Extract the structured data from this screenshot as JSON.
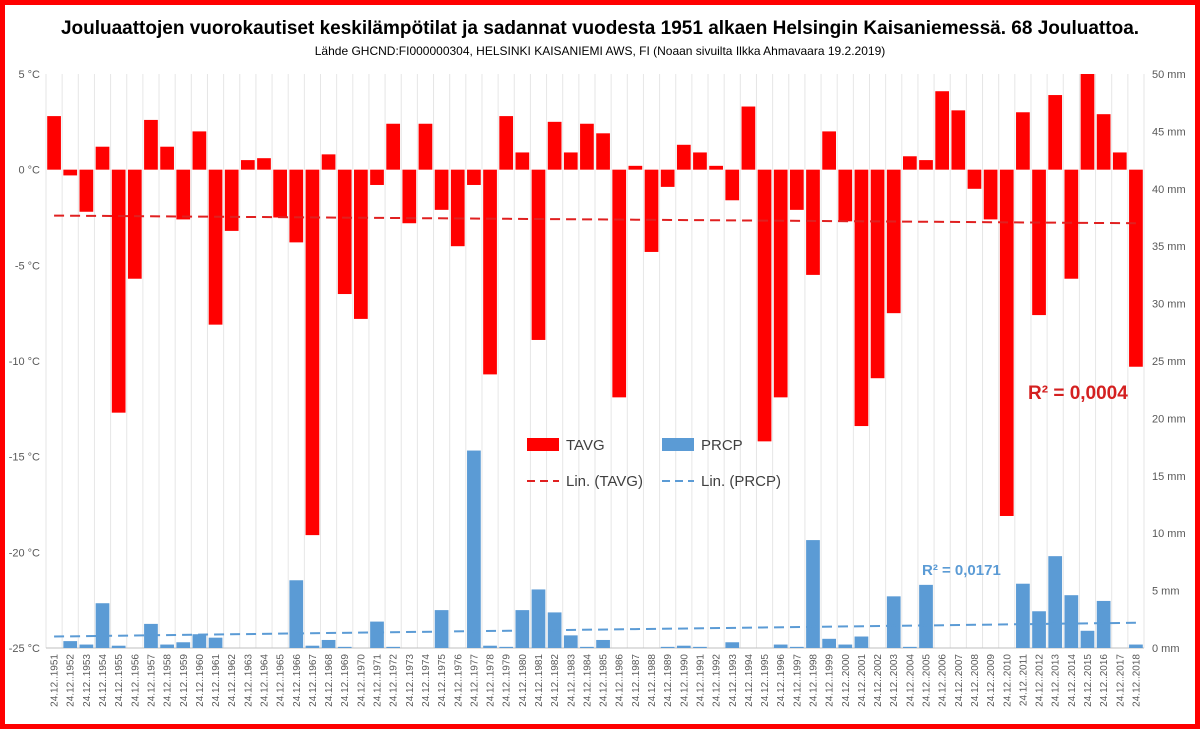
{
  "chart_data": {
    "type": "bar",
    "title": "Jouluaattojen vuorokautiset keskilämpötilat ja sadannat vuodesta 1951 alkaen Helsingin Kaisaniemessä. 68 Jouluattoa.",
    "subtitle": "Lähde GHCND:FI000000304, HELSINKI KAISANIEMI AWS, FI (Noaan sivuilta Ilkka Ahmavaara 19.2.2019)",
    "categories": [
      "24.12..1951",
      "24.12..1952",
      "24.12..1953",
      "24.12..1954",
      "24.12..1955",
      "24.12..1956",
      "24.12..1957",
      "24.12..1958",
      "24.12..1959",
      "24.12..1960",
      "24.12..1961",
      "24.12..1962",
      "24.12..1963",
      "24.12..1964",
      "24.12..1965",
      "24.12..1966",
      "24.12..1967",
      "24.12..1968",
      "24.12..1969",
      "24.12..1970",
      "24.12..1971",
      "24.12..1972",
      "24.12..1973",
      "24.12..1974",
      "24.12..1975",
      "24.12..1976",
      "24.12..1977",
      "24.12..1978",
      "24.12..1979",
      "24.12..1980",
      "24.12..1981",
      "24.12..1982",
      "24.12..1983",
      "24.12..1984",
      "24.12..1985",
      "24.12..1986",
      "24.12..1987",
      "24.12..1988",
      "24.12..1989",
      "24.12..1990",
      "24.12..1991",
      "24.12..1992",
      "24.12..1993",
      "24.12..1994",
      "24.12..1995",
      "24.12..1996",
      "24.12..1997",
      "24.12..1998",
      "24.12..1999",
      "24.12..2000",
      "24.12..2001",
      "24.12..2002",
      "24.12..2003",
      "24.12..2004",
      "24.12..2005",
      "24.12..2006",
      "24.12..2007",
      "24.12..2008",
      "24.12..2009",
      "24.12..2010",
      "24.12..2011",
      "24.12..2012",
      "24.12..2013",
      "24.12..2014",
      "24.12..2015",
      "24.12..2016",
      "24.12..2017",
      "24.12..2018"
    ],
    "series": [
      {
        "name": "TAVG",
        "axis": "left",
        "color": "#ff0000",
        "values": [
          2.8,
          -0.3,
          -2.2,
          1.2,
          -12.7,
          -5.7,
          2.6,
          1.2,
          -2.6,
          2.0,
          -8.1,
          -3.2,
          0.5,
          0.6,
          -2.5,
          -3.8,
          -19.1,
          0.8,
          -6.5,
          -7.8,
          -0.8,
          2.4,
          -2.8,
          2.4,
          -2.1,
          -4.0,
          -0.8,
          -10.7,
          2.8,
          0.9,
          -8.9,
          2.5,
          0.9,
          2.4,
          1.9,
          -11.9,
          0.2,
          -4.3,
          -0.9,
          1.3,
          0.9,
          0.2,
          -1.6,
          3.3,
          -14.2,
          -11.9,
          -2.1,
          -5.5,
          2.0,
          -2.7,
          -13.4,
          -10.9,
          -7.5,
          0.7,
          0.5,
          4.1,
          3.1,
          -1.0,
          -2.6,
          -18.1,
          3.0,
          -7.6,
          3.9,
          -5.7,
          5.0,
          2.9,
          0.9,
          -10.3
        ]
      },
      {
        "name": "PRCP",
        "axis": "right",
        "color": "#5b9bd5",
        "values": [
          0.0,
          0.6,
          0.3,
          3.9,
          0.2,
          0.0,
          2.1,
          0.3,
          0.5,
          1.2,
          0.9,
          0.0,
          0.0,
          0.0,
          0.0,
          5.9,
          0.2,
          0.7,
          0.1,
          0.0,
          2.3,
          0.1,
          0.0,
          0.0,
          3.3,
          0.0,
          17.2,
          0.2,
          0.1,
          3.3,
          5.1,
          3.1,
          1.1,
          0.1,
          0.7,
          0.0,
          0.0,
          0.0,
          0.1,
          0.2,
          0.1,
          0.0,
          0.5,
          0.0,
          0.0,
          0.3,
          0.1,
          9.4,
          0.8,
          0.3,
          1.0,
          0.0,
          4.5,
          0.1,
          5.5,
          0.0,
          0.0,
          0.0,
          0.0,
          0.0,
          5.6,
          3.2,
          8.0,
          4.6,
          1.5,
          4.1,
          0.0,
          0.3
        ]
      }
    ],
    "y_left": {
      "min": -25,
      "max": 5,
      "step": 5,
      "unit": "°C"
    },
    "y_right": {
      "min": 0,
      "max": 50,
      "step": 5,
      "unit": "mm"
    },
    "trendlines": [
      {
        "name": "Lin. (TAVG)",
        "series": "TAVG",
        "axis": "left",
        "start": -2.4,
        "end": -2.8,
        "color": "#e02020"
      },
      {
        "name": "Lin. (PRCP)",
        "series": "PRCP",
        "axis": "right",
        "start": 1.0,
        "end": 2.2,
        "color": "#5b9bd5"
      }
    ],
    "annotations": [
      {
        "text": "R² = 0,0004",
        "color": "#d42020"
      },
      {
        "text": "R² = 0,0171",
        "color": "#5b9bd5"
      }
    ],
    "legend": {
      "placement": "center",
      "entries": [
        "TAVG",
        "PRCP",
        "Lin. (TAVG)",
        "Lin. (PRCP)"
      ]
    },
    "grid": true
  }
}
